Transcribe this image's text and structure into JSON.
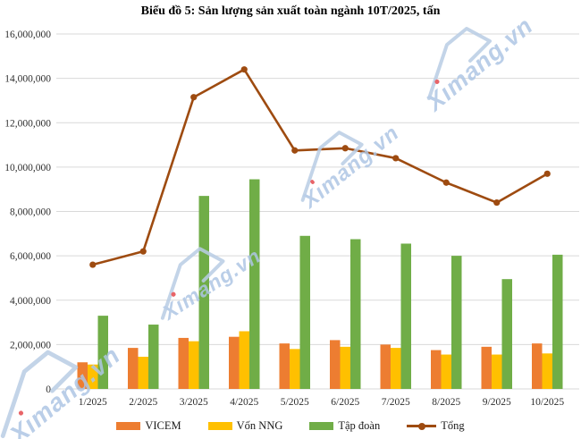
{
  "title": "Biểu đồ 5: Sản lượng sản xuất toàn ngành 10T/2025, tấn",
  "watermark": {
    "text": "Ximang.vn"
  },
  "colors": {
    "vicem": "#ED7D31",
    "von_nng": "#FFC000",
    "tap_doan": "#70AD47",
    "tong": "#9E4B10",
    "gridline": "#D9D9D9",
    "axis_text": "#2e2e2e",
    "watermark_blue": "#AEC6E4",
    "watermark_dot_red": "#E4494E"
  },
  "chart_data": {
    "type": "bar",
    "subtype": "grouped bars with overlaid line series",
    "title": "Biểu đồ 5: Sản lượng sản xuất toàn ngành 10T/2025, tấn",
    "categories": [
      "1/2025",
      "2/2025",
      "3/2025",
      "4/2025",
      "5/2025",
      "6/2025",
      "7/2025",
      "8/2025",
      "9/2025",
      "10/2025"
    ],
    "series": [
      {
        "name": "VICEM",
        "type": "bar",
        "color_key": "vicem",
        "values": [
          1200000,
          1850000,
          2300000,
          2350000,
          2050000,
          2200000,
          2000000,
          1750000,
          1900000,
          2050000
        ]
      },
      {
        "name": "Vốn NNG",
        "type": "bar",
        "color_key": "von_nng",
        "values": [
          1100000,
          1450000,
          2150000,
          2600000,
          1800000,
          1900000,
          1850000,
          1550000,
          1550000,
          1600000
        ]
      },
      {
        "name": "Tập đoàn",
        "type": "bar",
        "color_key": "tap_doan",
        "values": [
          3300000,
          2900000,
          8700000,
          9450000,
          6900000,
          6750000,
          6550000,
          6000000,
          4950000,
          6050000
        ]
      },
      {
        "name": "Tổng",
        "type": "line",
        "color_key": "tong",
        "values": [
          5600000,
          6200000,
          13150000,
          14400000,
          10750000,
          10850000,
          10400000,
          9300000,
          8400000,
          9700000
        ]
      }
    ],
    "xlabel": "",
    "ylabel": "",
    "ylim": [
      0,
      16000000
    ],
    "ytick_step": 2000000,
    "ytick_labels": [
      "0",
      "2,000,000",
      "4,000,000",
      "6,000,000",
      "8,000,000",
      "10,000,000",
      "12,000,000",
      "14,000,000",
      "16,000,000"
    ],
    "grid": true,
    "legend_position": "bottom"
  }
}
